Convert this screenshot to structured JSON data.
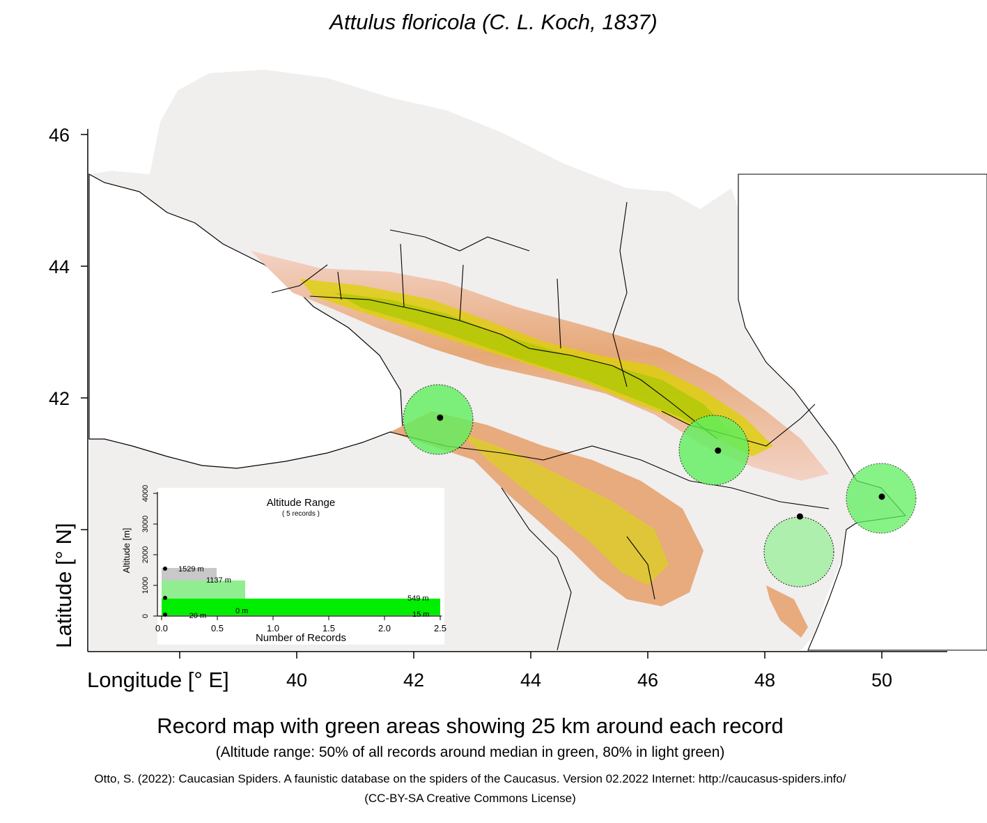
{
  "title": "Attulus floricola (C. L. Koch, 1837)",
  "axes": {
    "x_label": "Longitude [° E]",
    "y_label": "Latitude [° N]",
    "x_ticks": [
      "40",
      "42",
      "44",
      "46",
      "48",
      "50"
    ],
    "y_ticks": [
      "46",
      "44",
      "42"
    ],
    "x_tick_values": [
      40,
      42,
      44,
      46,
      48,
      50
    ],
    "y_tick_values": [
      46,
      44,
      42
    ]
  },
  "records": [
    {
      "lon": 42.45,
      "lat": 41.7
    },
    {
      "lon": 47.2,
      "lat": 41.2
    },
    {
      "lon": 50.0,
      "lat": 40.5
    },
    {
      "lon": 48.6,
      "lat": 40.2
    }
  ],
  "colors": {
    "buffer_fill": "#5ff05f",
    "buffer_light": "#a8f0a8",
    "alt_bar_50": "#00ee00",
    "alt_bar_80": "#90ee90",
    "alt_bar_grey": "#c8c8c8",
    "terrain_low": "#f2d0c4",
    "terrain_mid": "#e3a36f",
    "terrain_high": "#d8dd00"
  },
  "altitude_inset": {
    "title": "Altitude Range",
    "subtitle": "( 5 records )",
    "y_label": "Altitude [m]",
    "x_label": "Number of Records",
    "y_ticks": [
      "0",
      "1000",
      "2000",
      "3000",
      "4000"
    ],
    "x_ticks": [
      "0.0",
      "0.5",
      "1.0",
      "1.5",
      "2.0",
      "2.5"
    ],
    "bars": [
      {
        "label": "1529  m",
        "from": 1137,
        "to": 1529,
        "count": 0.5
      },
      {
        "label": "1137  m",
        "from": 549,
        "to": 1137,
        "count": 0.75
      },
      {
        "label": "549  m",
        "from": 15,
        "to": 549,
        "count": 2.5
      }
    ],
    "labels": {
      "top": "1529  m",
      "upper": "1137  m",
      "median": "549  m",
      "zero": "0  m",
      "low": "15  m",
      "min": "-20  m"
    }
  },
  "caption": "Record map with green areas showing 25 km around each record",
  "subcaption": "(Altitude range: 50% of all records around median in green, 80% in light green)",
  "citation": "Otto, S. (2022): Caucasian Spiders. A faunistic database on the spiders of the Caucasus. Version 02.2022 Internet: http://caucasus-spiders.info/",
  "license": "(CC-BY-SA Creative Commons License)"
}
